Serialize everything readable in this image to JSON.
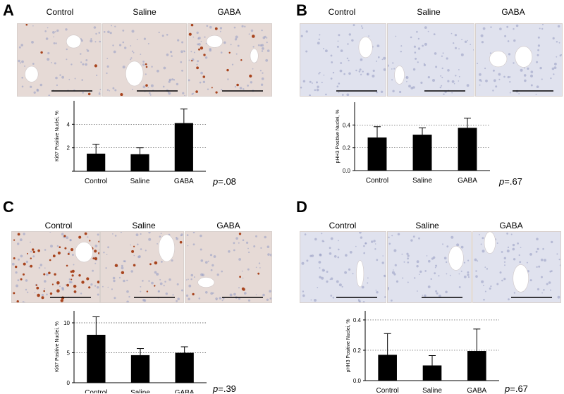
{
  "panels": [
    {
      "letter": "A",
      "images": [
        {
          "label": "Control"
        },
        {
          "label": "Saline"
        },
        {
          "label": "GABA"
        }
      ],
      "stain": "brown-moderate",
      "p_prefix": "p",
      "p_value": "=.08"
    },
    {
      "letter": "B",
      "images": [
        {
          "label": "Control"
        },
        {
          "label": "Saline"
        },
        {
          "label": "GABA"
        }
      ],
      "stain": "blue",
      "p_prefix": "p",
      "p_value": "=.67"
    },
    {
      "letter": "C",
      "images": [
        {
          "label": "Control"
        },
        {
          "label": "Saline"
        },
        {
          "label": "GABA"
        }
      ],
      "stain": "brown-heavy",
      "p_prefix": "p",
      "p_value": "=.39"
    },
    {
      "letter": "D",
      "images": [
        {
          "label": "Control"
        },
        {
          "label": "Saline"
        },
        {
          "label": "GABA"
        }
      ],
      "stain": "blue",
      "p_prefix": "p",
      "p_value": "=.67"
    }
  ],
  "colors": {
    "bar": "#000000",
    "tissue_brown": "#e6dad6",
    "tissue_blue": "#e0e2ee",
    "nucleus_blue": "#9aa0c4",
    "stain_brown": "#a8441e"
  },
  "chart_data": [
    {
      "type": "bar",
      "categories": [
        "Control",
        "Saline",
        "GABA"
      ],
      "values": [
        1.5,
        1.45,
        4.1
      ],
      "errors": [
        0.8,
        0.55,
        1.2
      ],
      "ylabel": "Ki67 Positive Nuclei, %",
      "ylim": [
        0,
        6
      ],
      "yticks": [
        "",
        "2",
        "4"
      ],
      "ytick_values": [
        0,
        2,
        4
      ],
      "gridlines": [
        2,
        4
      ],
      "grid": "dotted"
    },
    {
      "type": "bar",
      "categories": [
        "Control",
        "Saline",
        "GABA"
      ],
      "values": [
        0.29,
        0.315,
        0.375
      ],
      "errors": [
        0.095,
        0.06,
        0.085
      ],
      "ylabel": "pHH3 Positive Nuclei, %",
      "ylim": [
        0,
        0.6
      ],
      "yticks": [
        "0.0",
        "0.2",
        "0.4"
      ],
      "ytick_values": [
        0,
        0.2,
        0.4
      ],
      "gridlines": [
        0.2,
        0.4
      ],
      "grid": "dotted"
    },
    {
      "type": "bar",
      "categories": [
        "Control",
        "Saline",
        "GABA"
      ],
      "values": [
        8.0,
        4.6,
        5.0
      ],
      "errors": [
        3.0,
        1.1,
        1.0
      ],
      "ylabel": "Ki67 Positive Nuclei, %",
      "ylim": [
        0,
        12
      ],
      "yticks": [
        "0",
        "5",
        "10"
      ],
      "ytick_values": [
        0,
        5,
        10
      ],
      "gridlines": [
        5,
        10
      ],
      "grid": "dotted"
    },
    {
      "type": "bar",
      "categories": [
        "Control",
        "Saline",
        "GABA"
      ],
      "values": [
        0.17,
        0.1,
        0.195
      ],
      "errors": [
        0.14,
        0.065,
        0.145
      ],
      "ylabel": "pHH3 Positive Nuclei, %",
      "ylim": [
        0,
        0.46
      ],
      "yticks": [
        "0.0",
        "0.2",
        "0.4"
      ],
      "ytick_values": [
        0,
        0.2,
        0.4
      ],
      "gridlines": [
        0.2,
        0.4
      ],
      "grid": "dotted"
    }
  ]
}
